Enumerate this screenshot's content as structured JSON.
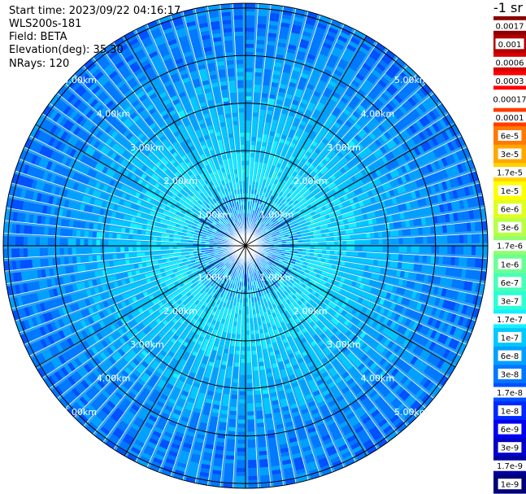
{
  "header": {
    "start_time": "Start time: 2023/09/22 04:16:17",
    "device": "WLS200s-181",
    "field": "Field: BETA",
    "elevation": "Elevation(deg): 35.30",
    "nrays": "NRays: 120"
  },
  "chart_data": {
    "type": "heatmap",
    "projection": "polar-ppi",
    "rays": 120,
    "range_rings_km": [
      1,
      2,
      3,
      4,
      5,
      6
    ],
    "max_range_km": 5.1,
    "ring_labels": [
      "1.00km",
      "2.00km",
      "3.00km",
      "4.00km",
      "5.00km",
      "6.00km"
    ],
    "colorbar": {
      "unit": "-1 sr",
      "ticks": [
        "0.0017",
        "0.001",
        "0.0006",
        "0.0003",
        "0.00017",
        "0.0001",
        "6e-5",
        "3e-5",
        "1.7e-5",
        "1e-5",
        "6e-6",
        "3e-6",
        "1.7e-6",
        "1e-6",
        "6e-7",
        "3e-7",
        "1.7e-7",
        "1e-7",
        "6e-8",
        "3e-8",
        "1.7e-8",
        "1e-8",
        "6e-9",
        "3e-9",
        "1.7e-9",
        "1e-9"
      ],
      "colors": [
        "#8b0000",
        "#b20000",
        "#d80000",
        "#ff0000",
        "#ffffff",
        "#ff3c00",
        "#ff7a00",
        "#ffa800",
        "#ffd200",
        "#ffff00",
        "#e0ff20",
        "#b8ff48",
        "#90ff70",
        "#6cff94",
        "#48ffb8",
        "#2cffd4",
        "#12f0ff",
        "#00c8ff",
        "#00a0ff",
        "#0078ff",
        "#0050ff",
        "#0028ff",
        "#0000f0",
        "#0000c8",
        "#0000a0",
        "#000078"
      ]
    },
    "beta_profile": [
      {
        "range_km": 0.3,
        "value": "3e-8"
      },
      {
        "range_km": 1.5,
        "value": "1.7e-7"
      },
      {
        "range_km": 2.5,
        "value": "1e-7"
      },
      {
        "range_km": 3.5,
        "value": "6e-8"
      },
      {
        "range_km": 4.5,
        "value": "3e-8"
      },
      {
        "range_km": 5.1,
        "value": "3e-8"
      }
    ]
  }
}
